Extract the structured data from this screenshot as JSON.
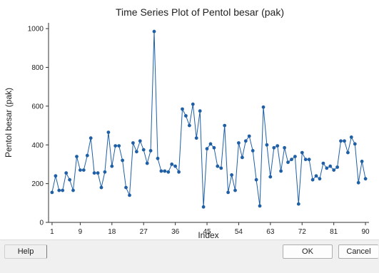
{
  "buttons": {
    "help": "Help",
    "ok": "OK",
    "cancel": "Cancel"
  },
  "colors": {
    "series": "#1f5fa6",
    "axis": "#333333",
    "background": "#ffffff"
  },
  "chart_data": {
    "type": "line",
    "title": "Time Series Plot of Pentol besar (pak)",
    "xlabel": "Index",
    "ylabel": "Pentol besar (pak)",
    "xlim": [
      0,
      91
    ],
    "ylim": [
      0,
      1030
    ],
    "x_ticks": [
      1,
      9,
      18,
      27,
      36,
      45,
      54,
      63,
      72,
      81,
      90
    ],
    "y_ticks": [
      0,
      200,
      400,
      600,
      800,
      1000
    ],
    "grid": false,
    "markers": true,
    "series": [
      {
        "name": "",
        "x": [
          1,
          2,
          3,
          4,
          5,
          6,
          7,
          8,
          9,
          10,
          11,
          12,
          13,
          14,
          15,
          16,
          17,
          18,
          19,
          20,
          21,
          22,
          23,
          24,
          25,
          26,
          27,
          28,
          29,
          30,
          31,
          32,
          33,
          34,
          35,
          36,
          37,
          38,
          39,
          40,
          41,
          42,
          43,
          44,
          45,
          46,
          47,
          48,
          49,
          50,
          51,
          52,
          53,
          54,
          55,
          56,
          57,
          58,
          59,
          60,
          61,
          62,
          63,
          64,
          65,
          66,
          67,
          68,
          69,
          70,
          71,
          72,
          73,
          74,
          75,
          76,
          77,
          78,
          79,
          80,
          81,
          82,
          83,
          84,
          85,
          86,
          87,
          88,
          89,
          90
        ],
        "values": [
          155,
          240,
          165,
          165,
          255,
          220,
          165,
          340,
          270,
          270,
          345,
          435,
          255,
          255,
          180,
          260,
          465,
          290,
          395,
          395,
          320,
          180,
          140,
          410,
          365,
          420,
          375,
          305,
          370,
          985,
          330,
          265,
          265,
          260,
          300,
          290,
          260,
          585,
          550,
          500,
          610,
          435,
          575,
          80,
          380,
          405,
          385,
          290,
          280,
          500,
          155,
          245,
          165,
          410,
          335,
          420,
          445,
          370,
          220,
          85,
          595,
          400,
          235,
          385,
          395,
          265,
          385,
          310,
          325,
          340,
          95,
          360,
          325,
          325,
          220,
          240,
          225,
          305,
          280,
          290,
          270,
          285,
          420,
          420,
          360,
          440,
          405,
          205,
          315,
          225
        ]
      }
    ]
  }
}
